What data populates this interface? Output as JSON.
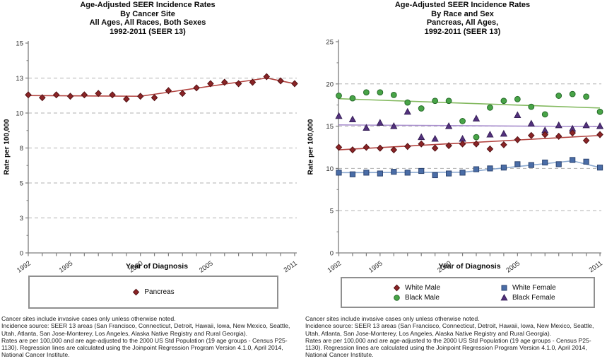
{
  "footnote": "Cancer sites include invasive cases only unless otherwise noted.\nIncidence source: SEER 13 areas (San Francisco, Connecticut, Detroit, Hawaii, Iowa, New Mexico, Seattle,\nUtah, Atlanta, San Jose-Monterey, Los Angeles, Alaska Native Registry and Rural Georgia).\nRates are per 100,000 and are age-adjusted to the 2000 US Std Population (19 age groups - Census P25-\n1130). Regression lines are calculated using the Joinpoint Regression Program Version 4.1.0, April 2014,\nNational Cancer Institute.",
  "colors": {
    "maroon_fill": "#8b2426",
    "maroon_stroke": "#541114",
    "red_line": "#b2433f",
    "green_fill": "#48a447",
    "green_stroke": "#266b2a",
    "green_line": "#83b95f",
    "blue_fill": "#4a6da7",
    "blue_stroke": "#2c4470",
    "blue_line": "#8aa8cf",
    "purple_fill": "#53317e",
    "purple_stroke": "#372058",
    "purple_line": "#a98fce",
    "grid": "#b0b0b0",
    "axis": "#7d7d7d"
  },
  "chart_data": [
    {
      "type": "scatter",
      "title_lines": [
        "Age-Adjusted SEER Incidence Rates",
        "By Cancer Site",
        "All Ages, All Races, Both Sexes",
        "1992-2011  (SEER 13)"
      ],
      "ylabel": "Rate per 100,000",
      "xlabel": "Year of Diagnosis",
      "ylim": [
        0,
        15
      ],
      "ytick_values": [
        15,
        12.5,
        10,
        7.5,
        5,
        2.5,
        0
      ],
      "ytick_labels": [
        "15",
        "13",
        "10",
        "8",
        "5",
        "3",
        "0"
      ],
      "grid_values": [
        12.5,
        10,
        7.5,
        5,
        2.5
      ],
      "minor_tick_values": [
        13.75,
        11.25,
        8.75,
        6.25,
        3.75,
        1.25
      ],
      "x_years": [
        1992,
        2011
      ],
      "x_labeled_years": [
        1992,
        1995,
        2000,
        2005,
        2011
      ],
      "legend_position": "bottom",
      "grid_on": true,
      "legend": [
        {
          "label": "Pancreas",
          "marker": "diamond",
          "fill": "maroon_fill",
          "stroke": "maroon_stroke"
        }
      ],
      "series": [
        {
          "name": "Pancreas",
          "marker": "diamond",
          "fill": "maroon_fill",
          "stroke": "maroon_stroke",
          "line": "red_line",
          "values": [
            11.3,
            11.1,
            11.3,
            11.2,
            11.3,
            11.4,
            11.3,
            11.0,
            11.2,
            11.1,
            11.6,
            11.4,
            11.8,
            12.1,
            12.2,
            12.1,
            12.2,
            12.6,
            12.3,
            12.1
          ],
          "trend": [
            [
              1992,
              11.25
            ],
            [
              2000,
              11.2
            ],
            [
              2009,
              12.5
            ],
            [
              2011,
              12.1
            ]
          ]
        }
      ]
    },
    {
      "type": "scatter",
      "title_lines": [
        "Age-Adjusted SEER Incidence Rates",
        "By Race and Sex",
        "Pancreas, All Ages,",
        "1992-2011  (SEER 13)"
      ],
      "ylabel": "Rate per 100,000",
      "xlabel": "Year of Diagnosis",
      "ylim": [
        0,
        25
      ],
      "ytick_values": [
        25,
        20,
        15,
        10,
        5,
        0
      ],
      "ytick_labels": [
        "25",
        "20",
        "15",
        "10",
        "5",
        "0"
      ],
      "grid_values": [
        20,
        15,
        10,
        5
      ],
      "minor_tick_values": [
        22.5,
        17.5,
        12.5,
        7.5,
        2.5
      ],
      "x_years": [
        1992,
        2011
      ],
      "x_labeled_years": [
        1992,
        1995,
        2000,
        2005,
        2011
      ],
      "legend_position": "bottom",
      "grid_on": true,
      "legend": [
        {
          "label": "White Male",
          "marker": "diamond",
          "fill": "maroon_fill",
          "stroke": "maroon_stroke"
        },
        {
          "label": "White Female",
          "marker": "square",
          "fill": "blue_fill",
          "stroke": "blue_stroke"
        },
        {
          "label": "Black Male",
          "marker": "circle",
          "fill": "green_fill",
          "stroke": "green_stroke"
        },
        {
          "label": "Black Female",
          "marker": "triangle",
          "fill": "purple_fill",
          "stroke": "purple_stroke"
        }
      ],
      "series": [
        {
          "name": "Black Male",
          "marker": "circle",
          "fill": "green_fill",
          "stroke": "green_stroke",
          "line": "green_line",
          "values": [
            18.6,
            18.3,
            19.0,
            19.0,
            18.7,
            17.8,
            17.1,
            18.0,
            18.0,
            15.6,
            13.7,
            17.2,
            18.0,
            18.2,
            17.3,
            16.4,
            18.6,
            18.8,
            18.5,
            16.7
          ],
          "trend": [
            [
              1992,
              18.25
            ],
            [
              2011,
              17.15
            ]
          ]
        },
        {
          "name": "Black Female",
          "marker": "triangle",
          "fill": "purple_fill",
          "stroke": "purple_stroke",
          "line": "purple_line",
          "values": [
            16.2,
            15.8,
            14.8,
            15.4,
            15.0,
            16.7,
            13.7,
            13.5,
            15.0,
            13.5,
            15.9,
            14.0,
            14.1,
            16.3,
            15.3,
            14.5,
            15.1,
            14.7,
            15.1,
            15.0
          ],
          "trend": [
            [
              1992,
              15.15
            ],
            [
              2011,
              14.95
            ]
          ]
        },
        {
          "name": "White Male",
          "marker": "diamond",
          "fill": "maroon_fill",
          "stroke": "maroon_stroke",
          "line": "red_line",
          "values": [
            12.5,
            12.2,
            12.5,
            12.4,
            12.2,
            12.6,
            12.9,
            12.4,
            12.7,
            12.9,
            12.9,
            12.3,
            12.8,
            13.4,
            13.9,
            14.0,
            13.8,
            14.2,
            13.3,
            14.0
          ],
          "trend": [
            [
              1992,
              12.2
            ],
            [
              2011,
              13.9
            ]
          ]
        },
        {
          "name": "White Female",
          "marker": "square",
          "fill": "blue_fill",
          "stroke": "blue_stroke",
          "line": "blue_line",
          "values": [
            9.5,
            9.3,
            9.5,
            9.4,
            9.6,
            9.5,
            9.7,
            9.2,
            9.4,
            9.5,
            9.9,
            10.0,
            10.1,
            10.5,
            10.4,
            10.7,
            10.5,
            11.0,
            10.8,
            10.1
          ],
          "trend": [
            [
              1992,
              9.5
            ],
            [
              2001,
              9.55
            ],
            [
              2009,
              10.9
            ],
            [
              2011,
              10.1
            ]
          ]
        }
      ]
    }
  ]
}
